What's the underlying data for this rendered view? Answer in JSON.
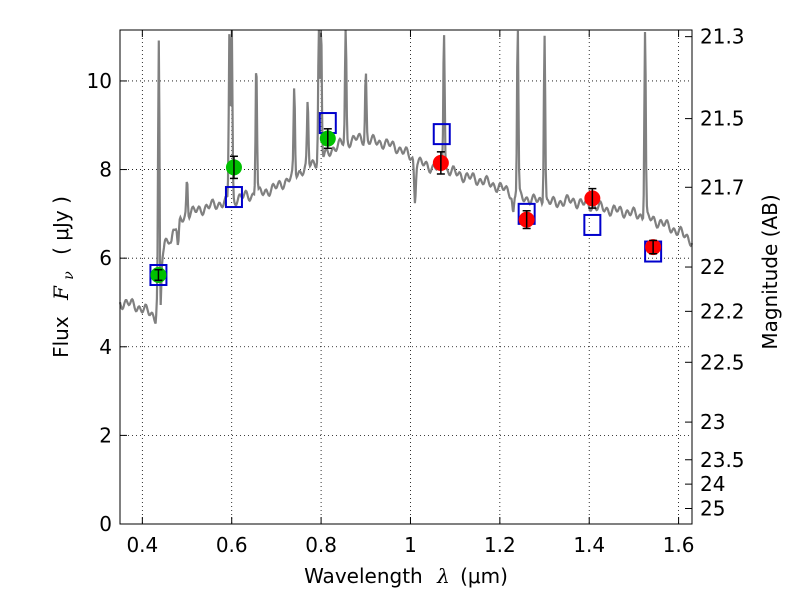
{
  "chart_data": {
    "type": "scatter",
    "xlabel_text": "Wavelength",
    "xlabel_symbol": "λ",
    "xlabel_unit": "(μm)",
    "ylabel_text": "Flux",
    "ylabel_symbol": "F",
    "ylabel_sub": "ν",
    "ylabel_unit": "( μJy )",
    "y2label": "Magnitude (AB)",
    "xlim": [
      0.35,
      1.63
    ],
    "ylim": [
      0,
      11.15
    ],
    "grid": true,
    "grid_style": "dotted",
    "xticks": [
      0.4,
      0.6,
      0.8,
      1.0,
      1.2,
      1.4,
      1.6
    ],
    "xtick_labels": [
      "0.4",
      "0.6",
      "0.8",
      "1",
      "1.2",
      "1.4",
      "1.6"
    ],
    "yticks": [
      0,
      2,
      4,
      6,
      8,
      10
    ],
    "ytick_labels": [
      "0",
      "2",
      "4",
      "6",
      "8",
      "10"
    ],
    "y2ticks": [
      {
        "label": "21.3",
        "flux": 11.0
      },
      {
        "label": "21.5",
        "flux": 9.15
      },
      {
        "label": "21.7",
        "flux": 7.6
      },
      {
        "label": "22",
        "flux": 5.8
      },
      {
        "label": "22.2",
        "flux": 4.8
      },
      {
        "label": "22.5",
        "flux": 3.65
      },
      {
        "label": "23",
        "flux": 2.3
      },
      {
        "label": "23.5",
        "flux": 1.45
      },
      {
        "label": "24",
        "flux": 0.9
      },
      {
        "label": "25",
        "flux": 0.35
      }
    ],
    "series": [
      {
        "marker": "circle",
        "color": "#00c000",
        "points": [
          {
            "x": 0.436,
            "y": 5.62,
            "err": 0.12
          },
          {
            "x": 0.605,
            "y": 8.05,
            "err": 0.25
          },
          {
            "x": 0.815,
            "y": 8.7,
            "err": 0.22
          }
        ]
      },
      {
        "marker": "circle",
        "color": "#ff0000",
        "points": [
          {
            "x": 1.068,
            "y": 8.15,
            "err": 0.25
          },
          {
            "x": 1.26,
            "y": 6.87,
            "err": 0.2
          },
          {
            "x": 1.407,
            "y": 7.35,
            "err": 0.22
          },
          {
            "x": 1.543,
            "y": 6.25,
            "err": 0.15
          }
        ]
      },
      {
        "marker": "open-square",
        "color": "#0000cc",
        "points": [
          {
            "x": 0.436,
            "y": 5.62
          },
          {
            "x": 0.605,
            "y": 7.38
          },
          {
            "x": 0.815,
            "y": 9.05
          },
          {
            "x": 1.07,
            "y": 8.8
          },
          {
            "x": 1.26,
            "y": 7.0
          },
          {
            "x": 1.407,
            "y": 6.75
          },
          {
            "x": 1.543,
            "y": 6.15
          }
        ]
      },
      {
        "type": "line",
        "color": "#808080",
        "continuum": [
          [
            0.35,
            5.0
          ],
          [
            0.38,
            4.95
          ],
          [
            0.4,
            4.85
          ],
          [
            0.42,
            4.75
          ],
          [
            0.43,
            4.65
          ],
          [
            0.435,
            5.5
          ],
          [
            0.45,
            6.3
          ],
          [
            0.48,
            6.8
          ],
          [
            0.5,
            7.0
          ],
          [
            0.53,
            7.1
          ],
          [
            0.56,
            7.2
          ],
          [
            0.6,
            7.3
          ],
          [
            0.63,
            7.4
          ],
          [
            0.66,
            7.45
          ],
          [
            0.7,
            7.6
          ],
          [
            0.73,
            7.8
          ],
          [
            0.76,
            8.0
          ],
          [
            0.8,
            8.25
          ],
          [
            0.83,
            8.5
          ],
          [
            0.85,
            8.6
          ],
          [
            0.88,
            8.7
          ],
          [
            0.91,
            8.65
          ],
          [
            0.94,
            8.6
          ],
          [
            0.97,
            8.5
          ],
          [
            1.0,
            8.3
          ],
          [
            1.02,
            8.15
          ],
          [
            1.05,
            8.05
          ],
          [
            1.08,
            8.0
          ],
          [
            1.12,
            7.85
          ],
          [
            1.16,
            7.75
          ],
          [
            1.2,
            7.6
          ],
          [
            1.24,
            7.4
          ],
          [
            1.28,
            7.3
          ],
          [
            1.32,
            7.25
          ],
          [
            1.36,
            7.3
          ],
          [
            1.4,
            7.2
          ],
          [
            1.44,
            7.1
          ],
          [
            1.48,
            7.05
          ],
          [
            1.52,
            6.95
          ],
          [
            1.56,
            6.8
          ],
          [
            1.6,
            6.6
          ],
          [
            1.63,
            6.4
          ]
        ],
        "emission_lines": [
          {
            "x": 0.437,
            "peak": 11.2
          },
          {
            "x": 0.5,
            "peak": 7.8
          },
          {
            "x": 0.595,
            "peak": 11.2
          },
          {
            "x": 0.6,
            "peak": 11.2
          },
          {
            "x": 0.655,
            "peak": 10.5
          },
          {
            "x": 0.74,
            "peak": 9.8
          },
          {
            "x": 0.77,
            "peak": 9.5
          },
          {
            "x": 0.795,
            "peak": 11.2
          },
          {
            "x": 0.8,
            "peak": 11.2
          },
          {
            "x": 0.855,
            "peak": 11.2
          },
          {
            "x": 0.9,
            "peak": 10.2
          },
          {
            "x": 1.075,
            "peak": 11.2
          },
          {
            "x": 1.24,
            "peak": 11.2
          },
          {
            "x": 1.3,
            "peak": 11.2
          },
          {
            "x": 1.525,
            "peak": 11.2
          }
        ],
        "absorption_dips": [
          {
            "x": 0.44,
            "depth": 4.45
          },
          {
            "x": 0.465,
            "depth": 6.4
          },
          {
            "x": 0.48,
            "depth": 6.2
          },
          {
            "x": 1.01,
            "depth": 7.3
          },
          {
            "x": 1.23,
            "depth": 7.0
          },
          {
            "x": 1.3,
            "depth": 7.2
          }
        ]
      }
    ]
  }
}
